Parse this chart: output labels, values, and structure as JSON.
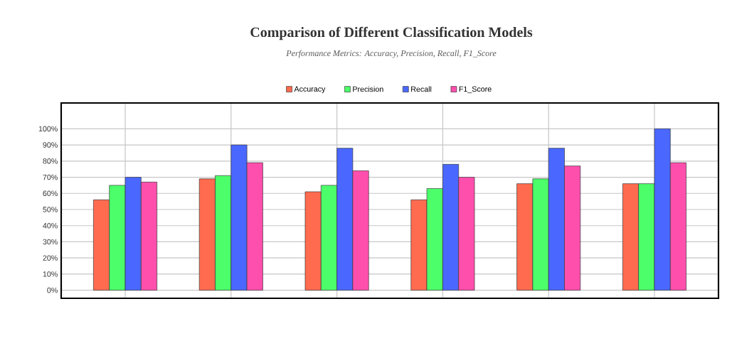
{
  "chart_data": {
    "type": "bar",
    "title": "Comparison of Different Classification Models",
    "subtitle": "Performance Metrics: Accuracy, Precision, Recall, F1_Score",
    "categories": [
      null,
      null,
      null,
      null,
      null,
      null
    ],
    "series": [
      {
        "name": "Accuracy",
        "color": "#ff6b4f",
        "values": [
          56,
          69,
          61,
          56,
          66,
          66
        ]
      },
      {
        "name": "Precision",
        "color": "#4cff6a",
        "values": [
          65,
          71,
          65,
          63,
          69,
          66
        ]
      },
      {
        "name": "Recall",
        "color": "#4a68ff",
        "values": [
          70,
          90,
          88,
          78,
          88,
          100
        ]
      },
      {
        "name": "F1_Score",
        "color": "#ff4fad",
        "values": [
          67,
          79,
          74,
          70,
          77,
          79
        ]
      }
    ],
    "ylim": [
      -5,
      116
    ],
    "yticks": [
      {
        "value": 0,
        "label": "0%"
      },
      {
        "value": 10,
        "label": "10%"
      },
      {
        "value": 20,
        "label": "20%"
      },
      {
        "value": 30,
        "label": "30%"
      },
      {
        "value": 40,
        "label": "40%"
      },
      {
        "value": 50,
        "label": "50%"
      },
      {
        "value": 60,
        "label": "60%"
      },
      {
        "value": 70,
        "label": "70%"
      },
      {
        "value": 80,
        "label": "80%"
      },
      {
        "value": 90,
        "label": "90%"
      },
      {
        "value": 100,
        "label": "100%"
      }
    ],
    "grid": true,
    "legend": "top",
    "tick_labels": "y"
  }
}
